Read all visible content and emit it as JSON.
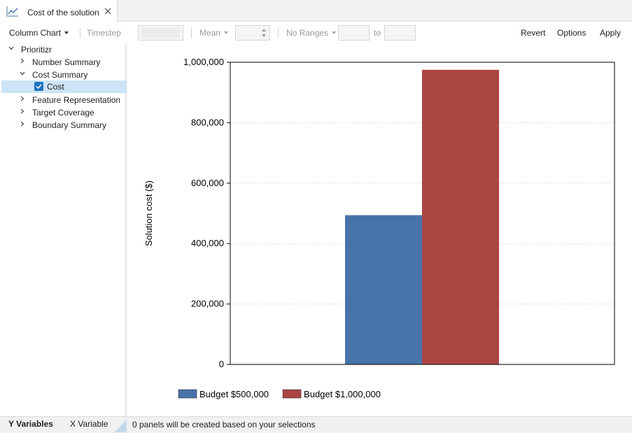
{
  "tab": {
    "title": "Cost of the solution",
    "icon": "line-chart-icon"
  },
  "toolbar": {
    "chart_type": "Column Chart",
    "timestep": "Timestep",
    "statistic": "Mean",
    "ranges": "No Ranges",
    "to": "to",
    "revert": "Revert",
    "options": "Options",
    "apply": "Apply"
  },
  "tree": {
    "root": "Prioritizr",
    "items": [
      {
        "label": "Number Summary",
        "expanded": false
      },
      {
        "label": "Cost Summary",
        "expanded": true,
        "children": [
          {
            "label": "Cost",
            "checked": true
          }
        ]
      },
      {
        "label": "Feature Representation",
        "expanded": false
      },
      {
        "label": "Target Coverage",
        "expanded": false
      },
      {
        "label": "Boundary Summary",
        "expanded": false
      }
    ]
  },
  "bottom": {
    "tabs": [
      "Y Variables",
      "X Variable"
    ],
    "status": "0 panels will be created based on your selections"
  },
  "colors": {
    "selection": "#cce4f7",
    "series1": "#4674a9",
    "series2": "#ab4542"
  },
  "chart_data": {
    "type": "bar",
    "title": "",
    "xlabel": "",
    "ylabel": "Solution cost ($)",
    "ylim": [
      0,
      1000000
    ],
    "yticks": [
      0,
      200000,
      400000,
      600000,
      800000,
      1000000
    ],
    "ytick_labels": [
      "0",
      "200,000",
      "400,000",
      "600,000",
      "800,000",
      "1,000,000"
    ],
    "grid": true,
    "legend_position": "bottom-left",
    "categories": [
      ""
    ],
    "series": [
      {
        "name": "Budget $500,000",
        "values": [
          494000
        ],
        "color": "#4674a9"
      },
      {
        "name": "Budget $1,000,000",
        "values": [
          975000
        ],
        "color": "#ab4542"
      }
    ]
  }
}
